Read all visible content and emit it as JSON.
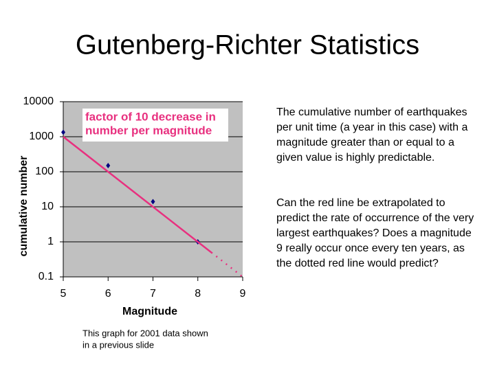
{
  "title": "Gutenberg-Richter Statistics",
  "chart_data": {
    "type": "scatter",
    "xlabel": "Magnitude",
    "ylabel": "cumulative number",
    "annotation": [
      "factor of 10 decrease in",
      "number per magnitude"
    ],
    "log_y": true,
    "grid": true,
    "xlim": [
      5,
      9
    ],
    "xticks": [
      5,
      6,
      7,
      8,
      9
    ],
    "ylim": [
      0.1,
      10000
    ],
    "yticks": [
      0.1,
      1,
      10,
      100,
      1000,
      10000
    ],
    "series": [
      {
        "color": "#000080",
        "marker": "diamond",
        "x": [
          5,
          6,
          7,
          8
        ],
        "values": [
          1340,
          150,
          14,
          1
        ]
      },
      {
        "color": "#e8307f",
        "line": "solid",
        "x": [
          5,
          8.3
        ],
        "values": [
          1000,
          0.5
        ]
      },
      {
        "color": "#e8307f",
        "line": "dotted",
        "x": [
          8.3,
          9
        ],
        "values": [
          0.5,
          0.1
        ]
      }
    ]
  },
  "caption": [
    "This graph for 2001 data shown",
    "in a previous slide"
  ],
  "text": [
    "The cumulative number of earthquakes per unit time (a year in this case) with a magnitude greater than or equal to a given value is highly predictable.",
    "Can the red line be extrapolated to predict the rate of occurrence of the very largest earthquakes? Does a magnitude 9 really occur once every ten years, as the dotted red line would predict?"
  ]
}
